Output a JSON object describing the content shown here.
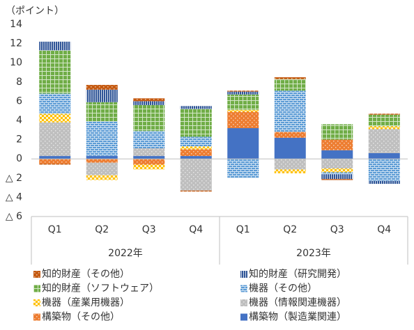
{
  "chart_data": {
    "type": "stacked-bar",
    "y_label": "（ポイント）",
    "categories": [
      "Q1",
      "Q2",
      "Q3",
      "Q4",
      "Q1",
      "Q2",
      "Q3",
      "Q4"
    ],
    "groups": [
      "2022年",
      "2023年"
    ],
    "ylim": [
      -6,
      14
    ],
    "yticks": [
      {
        "value": -6,
        "label": "△ 6"
      },
      {
        "value": -4,
        "label": "△ 4"
      },
      {
        "value": -2,
        "label": "△ 2"
      },
      0,
      2,
      4,
      6,
      8,
      10,
      12,
      14
    ],
    "series": [
      {
        "name": "構築物（製造業関連）",
        "color": "#4472c4",
        "pattern": "solid",
        "values": [
          0.3,
          0.3,
          0.3,
          0.3,
          3.2,
          2.2,
          0.9,
          0.6
        ]
      },
      {
        "name": "構築物（その他）",
        "color": "#ed7d31",
        "pattern": "dots",
        "values": [
          -0.5,
          -0.4,
          -0.6,
          0.7,
          1.7,
          0.6,
          1.1,
          0
        ]
      },
      {
        "name": "機器（情報関連機器）",
        "color": "#bfbfbf",
        "pattern": "dots",
        "values": [
          3.5,
          -1.3,
          0.8,
          -3.3,
          0,
          -1.1,
          -1.0,
          2.5
        ]
      },
      {
        "name": "機器（産業用機器）",
        "color": "#ffc000",
        "pattern": "checker",
        "values": [
          0.9,
          -0.5,
          -0.5,
          0.3,
          0.2,
          -0.4,
          -0.4,
          0.3
        ]
      },
      {
        "name": "機器（その他）",
        "color": "#5b9bd5",
        "pattern": "brick",
        "values": [
          2.1,
          3.6,
          1.8,
          1.0,
          -2.0,
          4.3,
          -0.2,
          -2.3
        ]
      },
      {
        "name": "知的財産（ソフトウェア）",
        "color": "#70ad47",
        "pattern": "grid",
        "values": [
          4.5,
          2.0,
          2.7,
          2.9,
          1.6,
          1.2,
          1.6,
          1.2
        ]
      },
      {
        "name": "知的財産（研究開発）",
        "color": "#2f5597",
        "pattern": "vstripe",
        "values": [
          0.9,
          1.3,
          0.4,
          0.3,
          0.3,
          0,
          -0.5,
          -0.3
        ]
      },
      {
        "name": "知的財産（その他）",
        "color": "#c55a11",
        "pattern": "dots",
        "values": [
          -0.1,
          0.5,
          0.3,
          -0.1,
          0.1,
          0.2,
          -0.1,
          0.1
        ]
      }
    ],
    "legend_order": [
      7,
      6,
      5,
      4,
      3,
      2,
      1,
      0
    ]
  }
}
